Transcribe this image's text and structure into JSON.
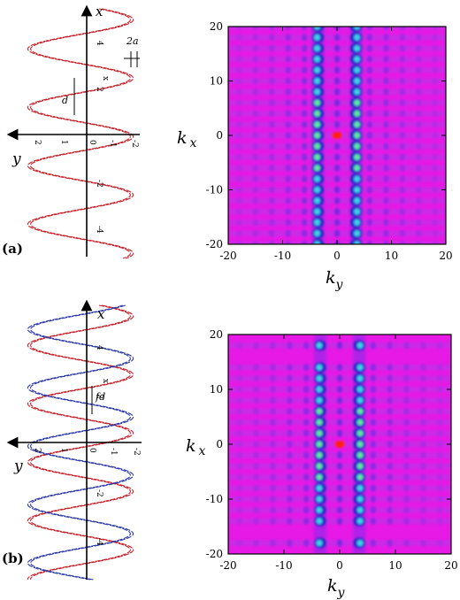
{
  "panels": [
    {
      "label": "(a)",
      "schematic": {
        "axis_x_label": "x",
        "axis_y_label": "y",
        "annotation_width": "2a",
        "annotation_spacing": "d",
        "x_ticks": [
          "4",
          "2",
          "0",
          "-2",
          "-4"
        ],
        "y_ticks": [
          "2",
          "1",
          "0",
          "-1",
          "-2"
        ],
        "helix_colors": [
          "#c8202a"
        ]
      },
      "heatmap": {
        "x_axis_label": "k",
        "x_axis_subscript": "y",
        "y_axis_label": "k",
        "y_axis_subscript": "x",
        "x_ticks": [
          "-20",
          "-10",
          "0",
          "10",
          "20"
        ],
        "y_ticks": [
          "20",
          "10",
          "0",
          "-10",
          "-20"
        ]
      }
    },
    {
      "label": "(b)",
      "schematic": {
        "axis_x_label": "x",
        "axis_y_label": "y",
        "annotation_spacing": "fd",
        "x_ticks": [
          "4",
          "2",
          "0",
          "-2",
          "-4"
        ],
        "y_ticks": [
          "2",
          "1",
          "0",
          "-1",
          "-2"
        ],
        "helix_colors": [
          "#c8202a",
          "#2c3aa8"
        ]
      },
      "heatmap": {
        "x_axis_label": "k",
        "x_axis_subscript": "y",
        "y_axis_label": "k",
        "y_axis_subscript": "x",
        "x_ticks": [
          "-20",
          "-10",
          "0",
          "10",
          "20"
        ],
        "y_ticks": [
          "20",
          "10",
          "0",
          "-10",
          "-20"
        ]
      }
    }
  ],
  "chart_data": [
    {
      "type": "heatmap",
      "xlabel": "k_y",
      "ylabel": "k_x",
      "xlim": [
        -20,
        20
      ],
      "ylim": [
        -20,
        20
      ],
      "background_color": "#e619e6",
      "bright_row_kx": [
        -20,
        -18,
        -16,
        -14,
        -12,
        -10,
        -8,
        -6,
        -4,
        -2,
        0,
        2,
        4,
        6,
        8,
        10,
        12,
        14,
        16,
        18,
        20
      ],
      "column_ky": [
        -3.5,
        3.5
      ],
      "peak": {
        "kx": 0,
        "ky": 0,
        "color": "#ff2010"
      }
    },
    {
      "type": "heatmap",
      "xlabel": "k_y",
      "ylabel": "k_x",
      "xlim": [
        -20,
        20
      ],
      "ylim": [
        -20,
        20
      ],
      "background_color": "#e619e6",
      "bright_row_kx": [
        -18,
        -14,
        -12,
        -10,
        -8,
        -6,
        -4,
        -2,
        0,
        2,
        4,
        6,
        8,
        10,
        12,
        14,
        18
      ],
      "column_ky": [
        -3.5,
        3.5
      ],
      "peak": {
        "kx": 0,
        "ky": 0,
        "color": "#ff2010"
      }
    }
  ]
}
